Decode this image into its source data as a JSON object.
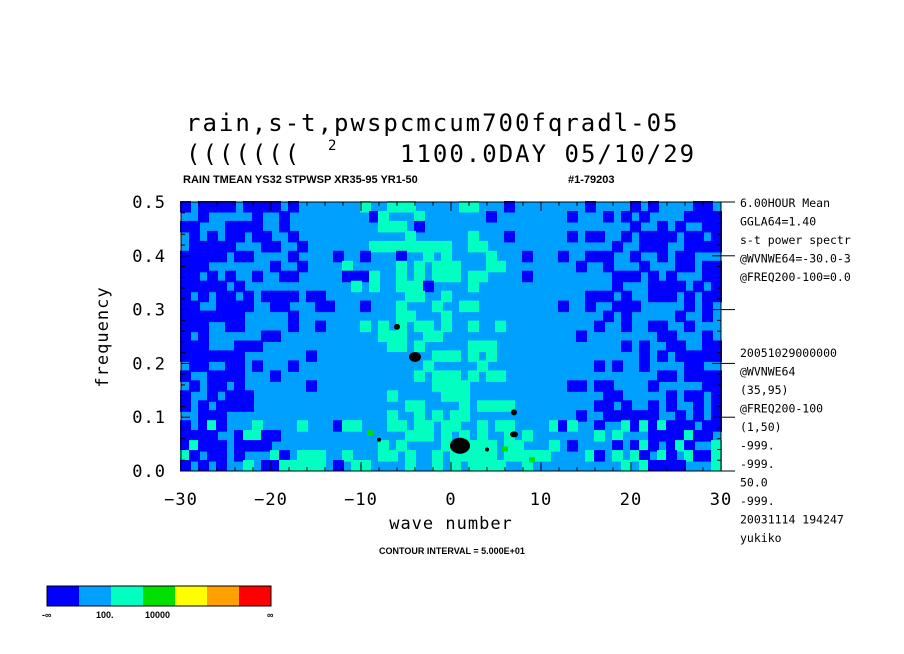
{
  "chart_data": {
    "type": "heatmap",
    "title_line1": "rain,s-t,pwspcmcum700fqradl-05",
    "title_line2_left": "(((((((",
    "title_line2_sup": "2",
    "title_line2_right": "1100.0DAY 05/10/29",
    "subtitle": "RAIN TMEAN YS32 STPWSP XR35-95 YR1-50",
    "subtitle_right": "#1-79203",
    "xlabel": "wave number",
    "ylabel": "frequency",
    "xlim": [
      -30,
      30
    ],
    "ylim": [
      0.0,
      0.5
    ],
    "x_tick_labels": [
      "−30",
      "−20",
      "−10",
      "0",
      "10",
      "20",
      "30"
    ],
    "y_tick_labels": [
      "0.0",
      "0.1",
      "0.2",
      "0.3",
      "0.4",
      "0.5"
    ],
    "contour_interval": "CONTOUR INTERVAL = 5.000E+01",
    "side_info_top": [
      "6.00HOUR Mean",
      "GGLA64=1.40",
      "s-t power spectr",
      "@WVNWE64=-30.0-3",
      "@FREQ200-100=0.0"
    ],
    "side_info_bottom": [
      "20051029000000",
      "@WVNWE64",
      "(35,95)",
      "@FREQ200-100",
      "(1,50)",
      "-999.",
      "-999.",
      "50.0",
      "-999.",
      "20031114 194247",
      "yukiko"
    ],
    "legend_labels": [
      "-∞",
      "100.",
      "10000",
      "∞"
    ],
    "legend_colors": [
      "#0000ff",
      "#00a0ff",
      "#00ffc0",
      "#00e000",
      "#ffff00",
      "#ffa000",
      "#ff0000"
    ],
    "grid": false
  }
}
